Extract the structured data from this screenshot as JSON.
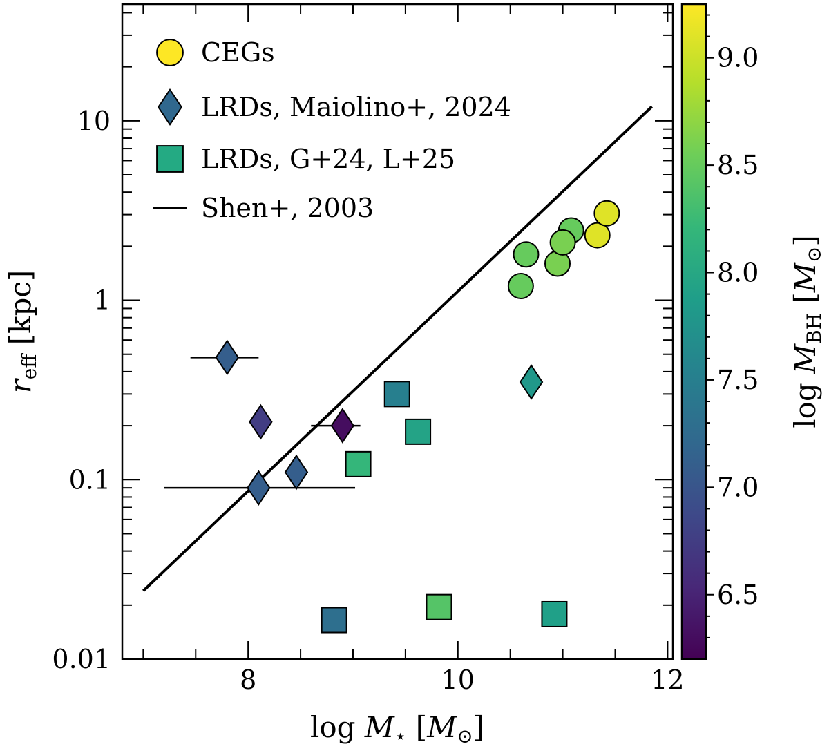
{
  "chart_data": {
    "type": "scatter",
    "title": "",
    "xlabel": "log M⋆ [M⊙]",
    "ylabel": "r_eff [kpc]",
    "xlim": [
      6.8,
      12.05
    ],
    "ylim_log10": [
      -2,
      1.65
    ],
    "yscale": "log",
    "x_ticks": [
      {
        "value": 8,
        "label": "8"
      },
      {
        "value": 10,
        "label": "10"
      },
      {
        "value": 12,
        "label": "12"
      }
    ],
    "y_ticks": [
      {
        "value": 0.01,
        "label": "0.01"
      },
      {
        "value": 0.1,
        "label": "0.1"
      },
      {
        "value": 1,
        "label": "1"
      },
      {
        "value": 10,
        "label": "10"
      }
    ],
    "colorbar": {
      "label": "log M_BH [M⊙]",
      "range": [
        6.2,
        9.25
      ],
      "colormap": "viridis",
      "ticks": [
        {
          "value": 6.5,
          "label": "6.5"
        },
        {
          "value": 7.0,
          "label": "7.0"
        },
        {
          "value": 7.5,
          "label": "7.5"
        },
        {
          "value": 8.0,
          "label": "8.0"
        },
        {
          "value": 8.5,
          "label": "8.5"
        },
        {
          "value": 9.0,
          "label": "9.0"
        }
      ]
    },
    "legend": {
      "placement": "top-left",
      "entries": [
        {
          "label": "CEGs",
          "marker": "circle",
          "color": "#fde725"
        },
        {
          "label": "LRDs, Maiolino+, 2024",
          "marker": "diamond",
          "color": "#30688e"
        },
        {
          "label": "LRDs, G+24, L+25",
          "marker": "square",
          "color": "#24aa83"
        },
        {
          "label": "Shen+, 2003",
          "marker": "line",
          "color": "#000000"
        }
      ]
    },
    "series": [
      {
        "name": "CEGs",
        "marker": "circle",
        "points": [
          {
            "x": 10.6,
            "y": 1.2,
            "mbh": 8.5
          },
          {
            "x": 10.65,
            "y": 1.8,
            "mbh": 8.5
          },
          {
            "x": 10.95,
            "y": 1.6,
            "mbh": 8.6
          },
          {
            "x": 11.08,
            "y": 2.45,
            "mbh": 8.5
          },
          {
            "x": 11.0,
            "y": 2.1,
            "mbh": 8.6
          },
          {
            "x": 11.33,
            "y": 2.3,
            "mbh": 9.1
          },
          {
            "x": 11.42,
            "y": 3.05,
            "mbh": 9.1
          }
        ]
      },
      {
        "name": "LRDs, Maiolino+, 2024",
        "marker": "diamond",
        "points": [
          {
            "x": 7.8,
            "y": 0.48,
            "mbh": 7.1,
            "xerr": [
              7.45,
              8.1
            ]
          },
          {
            "x": 8.12,
            "y": 0.21,
            "mbh": 6.75
          },
          {
            "x": 8.9,
            "y": 0.2,
            "mbh": 6.3,
            "xerr": [
              8.6,
              9.07
            ]
          },
          {
            "x": 8.46,
            "y": 0.11,
            "mbh": 7.1
          },
          {
            "x": 8.1,
            "y": 0.09,
            "mbh": 7.1,
            "xerr": [
              7.2,
              9.02
            ]
          },
          {
            "x": 10.7,
            "y": 0.35,
            "mbh": 7.8
          }
        ]
      },
      {
        "name": "LRDs, G+24, L+25",
        "marker": "square",
        "points": [
          {
            "x": 9.42,
            "y": 0.3,
            "mbh": 7.5
          },
          {
            "x": 9.62,
            "y": 0.185,
            "mbh": 7.95
          },
          {
            "x": 9.05,
            "y": 0.122,
            "mbh": 8.2
          },
          {
            "x": 8.82,
            "y": 0.0165,
            "mbh": 7.3
          },
          {
            "x": 9.82,
            "y": 0.0195,
            "mbh": 8.4
          },
          {
            "x": 10.92,
            "y": 0.0178,
            "mbh": 7.9
          }
        ]
      },
      {
        "name": "Shen+, 2003",
        "marker": "line",
        "points": [
          {
            "x": 7.0,
            "y": 0.024
          },
          {
            "x": 11.85,
            "y": 12.0
          }
        ]
      }
    ]
  }
}
